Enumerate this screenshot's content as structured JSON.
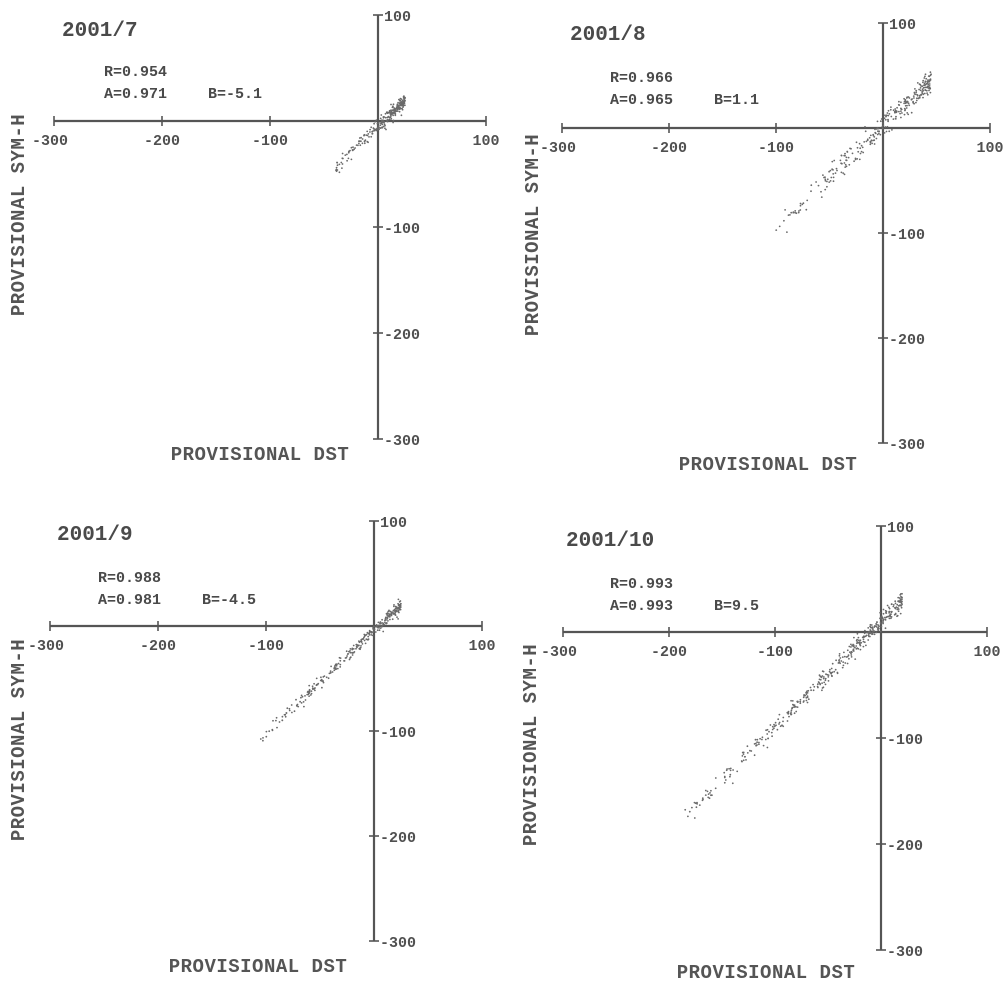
{
  "chart_data": [
    {
      "type": "scatter",
      "title": "2001/7",
      "xlabel": "PROVISIONAL DST",
      "ylabel": "PROVISIONAL SYM-H",
      "xlim": [
        -300,
        100
      ],
      "ylim": [
        -300,
        100
      ],
      "x_ticks": [
        -300,
        -200,
        -100,
        100
      ],
      "y_ticks": [
        100,
        -100,
        -200,
        -300
      ],
      "stats": {
        "r": "R=0.954",
        "a": "A=0.971",
        "b": "B=-5.1"
      },
      "R": 0.954,
      "A": 0.971,
      "B": -5.1,
      "point_range": {
        "dst_min": -40,
        "dst_max": 25
      },
      "n_points": 260,
      "spread": 3
    },
    {
      "type": "scatter",
      "title": "2001/8",
      "xlabel": "PROVISIONAL DST",
      "ylabel": "PROVISIONAL SYM-H",
      "xlim": [
        -300,
        100
      ],
      "ylim": [
        -300,
        100
      ],
      "x_ticks": [
        -300,
        -200,
        -100,
        100
      ],
      "y_ticks": [
        100,
        -100,
        -200,
        -300
      ],
      "stats": {
        "r": "R=0.966",
        "a": "A=0.965",
        "b": "B=1.1"
      },
      "R": 0.966,
      "A": 0.965,
      "B": 1.1,
      "point_range": {
        "dst_min": -100,
        "dst_max": 45
      },
      "n_points": 300,
      "spread": 6
    },
    {
      "type": "scatter",
      "title": "2001/9",
      "xlabel": "PROVISIONAL DST",
      "ylabel": "PROVISIONAL SYM-H",
      "xlim": [
        -300,
        100
      ],
      "ylim": [
        -300,
        100
      ],
      "x_ticks": [
        -300,
        -200,
        -100,
        100
      ],
      "y_ticks": [
        100,
        -100,
        -200,
        -300
      ],
      "stats": {
        "r": "R=0.988",
        "a": "A=0.981",
        "b": "B=-4.5"
      },
      "R": 0.988,
      "A": 0.981,
      "B": -4.5,
      "point_range": {
        "dst_min": -105,
        "dst_max": 25
      },
      "n_points": 300,
      "spread": 3
    },
    {
      "type": "scatter",
      "title": "2001/10",
      "xlabel": "PROVISIONAL DST",
      "ylabel": "PROVISIONAL SYM-H",
      "xlim": [
        -300,
        100
      ],
      "ylim": [
        -300,
        100
      ],
      "x_ticks": [
        -300,
        -200,
        -100,
        100
      ],
      "y_ticks": [
        100,
        -100,
        -200,
        -300
      ],
      "stats": {
        "r": "R=0.993",
        "a": "A=0.993",
        "b": "B=9.5"
      },
      "R": 0.993,
      "A": 0.993,
      "B": 9.5,
      "point_range": {
        "dst_min": -185,
        "dst_max": 20
      },
      "n_points": 420,
      "spread": 4
    }
  ]
}
